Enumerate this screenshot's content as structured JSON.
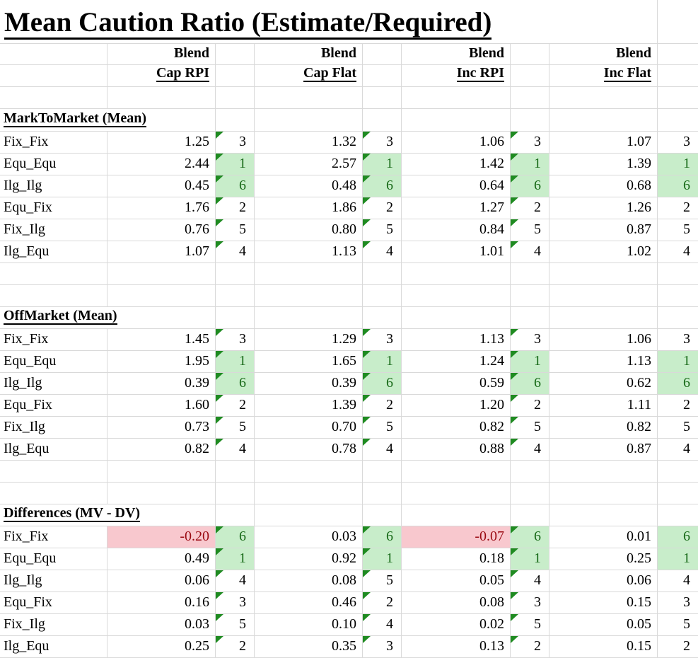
{
  "title": "Mean Caution Ratio (Estimate/Required)",
  "columns": [
    {
      "group": "Blend",
      "name": "Cap RPI"
    },
    {
      "group": "Blend",
      "name": "Cap Flat"
    },
    {
      "group": "Blend",
      "name": "Inc RPI"
    },
    {
      "group": "Blend",
      "name": "Inc Flat"
    }
  ],
  "sections": [
    {
      "header": "MarkToMarket (Mean)",
      "rows": [
        {
          "label": "Fix_Fix",
          "cells": [
            {
              "value": "1.25",
              "rank": 3
            },
            {
              "value": "1.32",
              "rank": 3
            },
            {
              "value": "1.06",
              "rank": 3
            },
            {
              "value": "1.07",
              "rank": 3
            }
          ]
        },
        {
          "label": "Equ_Equ",
          "cells": [
            {
              "value": "2.44",
              "rank": 1
            },
            {
              "value": "2.57",
              "rank": 1
            },
            {
              "value": "1.42",
              "rank": 1
            },
            {
              "value": "1.39",
              "rank": 1
            }
          ]
        },
        {
          "label": "Ilg_Ilg",
          "cells": [
            {
              "value": "0.45",
              "rank": 6
            },
            {
              "value": "0.48",
              "rank": 6
            },
            {
              "value": "0.64",
              "rank": 6
            },
            {
              "value": "0.68",
              "rank": 6
            }
          ]
        },
        {
          "label": "Equ_Fix",
          "cells": [
            {
              "value": "1.76",
              "rank": 2
            },
            {
              "value": "1.86",
              "rank": 2
            },
            {
              "value": "1.27",
              "rank": 2
            },
            {
              "value": "1.26",
              "rank": 2
            }
          ]
        },
        {
          "label": "Fix_Ilg",
          "cells": [
            {
              "value": "0.76",
              "rank": 5
            },
            {
              "value": "0.80",
              "rank": 5
            },
            {
              "value": "0.84",
              "rank": 5
            },
            {
              "value": "0.87",
              "rank": 5
            }
          ]
        },
        {
          "label": "Ilg_Equ",
          "cells": [
            {
              "value": "1.07",
              "rank": 4
            },
            {
              "value": "1.13",
              "rank": 4
            },
            {
              "value": "1.01",
              "rank": 4
            },
            {
              "value": "1.02",
              "rank": 4
            }
          ]
        }
      ]
    },
    {
      "header": "OffMarket (Mean)",
      "rows": [
        {
          "label": "Fix_Fix",
          "cells": [
            {
              "value": "1.45",
              "rank": 3
            },
            {
              "value": "1.29",
              "rank": 3
            },
            {
              "value": "1.13",
              "rank": 3
            },
            {
              "value": "1.06",
              "rank": 3
            }
          ]
        },
        {
          "label": "Equ_Equ",
          "cells": [
            {
              "value": "1.95",
              "rank": 1
            },
            {
              "value": "1.65",
              "rank": 1
            },
            {
              "value": "1.24",
              "rank": 1
            },
            {
              "value": "1.13",
              "rank": 1
            }
          ]
        },
        {
          "label": "Ilg_Ilg",
          "cells": [
            {
              "value": "0.39",
              "rank": 6
            },
            {
              "value": "0.39",
              "rank": 6
            },
            {
              "value": "0.59",
              "rank": 6
            },
            {
              "value": "0.62",
              "rank": 6
            }
          ]
        },
        {
          "label": "Equ_Fix",
          "cells": [
            {
              "value": "1.60",
              "rank": 2
            },
            {
              "value": "1.39",
              "rank": 2
            },
            {
              "value": "1.20",
              "rank": 2
            },
            {
              "value": "1.11",
              "rank": 2
            }
          ]
        },
        {
          "label": "Fix_Ilg",
          "cells": [
            {
              "value": "0.73",
              "rank": 5
            },
            {
              "value": "0.70",
              "rank": 5
            },
            {
              "value": "0.82",
              "rank": 5
            },
            {
              "value": "0.82",
              "rank": 5
            }
          ]
        },
        {
          "label": "Ilg_Equ",
          "cells": [
            {
              "value": "0.82",
              "rank": 4
            },
            {
              "value": "0.78",
              "rank": 4
            },
            {
              "value": "0.88",
              "rank": 4
            },
            {
              "value": "0.87",
              "rank": 4
            }
          ]
        }
      ]
    },
    {
      "header": "Differences (MV - DV)",
      "rows": [
        {
          "label": "Fix_Fix",
          "cells": [
            {
              "value": "-0.20",
              "rank": 6
            },
            {
              "value": "0.03",
              "rank": 6
            },
            {
              "value": "-0.07",
              "rank": 6
            },
            {
              "value": "0.01",
              "rank": 6
            }
          ]
        },
        {
          "label": "Equ_Equ",
          "cells": [
            {
              "value": "0.49",
              "rank": 1
            },
            {
              "value": "0.92",
              "rank": 1
            },
            {
              "value": "0.18",
              "rank": 1
            },
            {
              "value": "0.25",
              "rank": 1
            }
          ]
        },
        {
          "label": "Ilg_Ilg",
          "cells": [
            {
              "value": "0.06",
              "rank": 4
            },
            {
              "value": "0.08",
              "rank": 5
            },
            {
              "value": "0.05",
              "rank": 4
            },
            {
              "value": "0.06",
              "rank": 4
            }
          ]
        },
        {
          "label": "Equ_Fix",
          "cells": [
            {
              "value": "0.16",
              "rank": 3
            },
            {
              "value": "0.46",
              "rank": 2
            },
            {
              "value": "0.08",
              "rank": 3
            },
            {
              "value": "0.15",
              "rank": 3
            }
          ]
        },
        {
          "label": "Fix_Ilg",
          "cells": [
            {
              "value": "0.03",
              "rank": 5
            },
            {
              "value": "0.10",
              "rank": 4
            },
            {
              "value": "0.02",
              "rank": 5
            },
            {
              "value": "0.05",
              "rank": 5
            }
          ]
        },
        {
          "label": "Ilg_Equ",
          "cells": [
            {
              "value": "0.25",
              "rank": 2
            },
            {
              "value": "0.35",
              "rank": 3
            },
            {
              "value": "0.13",
              "rank": 2
            },
            {
              "value": "0.15",
              "rank": 2
            }
          ]
        }
      ]
    }
  ],
  "highlight_rule": "rank 1 and rank 6 cells are highlighted green; negative values are highlighted red",
  "colors": {
    "gridline": "#d9d9d9",
    "highlight_green_bg": "#c8edca",
    "highlight_green_text": "#176917",
    "negative_bg": "#f8c8ce",
    "negative_text": "#9a0a12",
    "indicator_triangle": "#1f8b21"
  }
}
